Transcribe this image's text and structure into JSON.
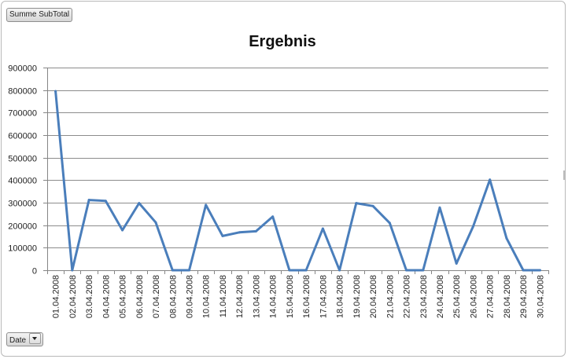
{
  "pivot": {
    "value_field_label": "Summe SubTotal",
    "axis_field_label": "Date"
  },
  "colors": {
    "series": "#4a7ebb",
    "grid": "#8c8c8c",
    "axis": "#868686"
  },
  "chart_data": {
    "type": "line",
    "title": "Ergebnis",
    "xlabel": "",
    "ylabel": "",
    "ylim": [
      0,
      900000
    ],
    "yticks": [
      0,
      100000,
      200000,
      300000,
      400000,
      500000,
      600000,
      700000,
      800000,
      900000
    ],
    "grid": true,
    "legend": "none",
    "categories": [
      "01.04.2008",
      "02.04.2008",
      "03.04.2008",
      "04.04.2008",
      "05.04.2008",
      "06.04.2008",
      "07.04.2008",
      "08.04.2008",
      "09.04.2008",
      "10.04.2008",
      "11.04.2008",
      "12.04.2008",
      "13.04.2008",
      "14.04.2008",
      "15.04.2008",
      "16.04.2008",
      "17.04.2008",
      "18.04.2008",
      "19.04.2008",
      "20.04.2008",
      "21.04.2008",
      "22.04.2008",
      "23.04.2008",
      "24.04.2008",
      "25.04.2008",
      "26.04.2008",
      "27.04.2008",
      "28.04.2008",
      "29.04.2008",
      "30.04.2008"
    ],
    "series": [
      {
        "values": [
          795000,
          0,
          312000,
          308000,
          178000,
          298000,
          212000,
          0,
          0,
          290000,
          152000,
          168000,
          173000,
          238000,
          0,
          0,
          185000,
          0,
          298000,
          285000,
          210000,
          0,
          0,
          278000,
          30000,
          195000,
          402000,
          142000,
          0,
          0
        ]
      }
    ]
  }
}
